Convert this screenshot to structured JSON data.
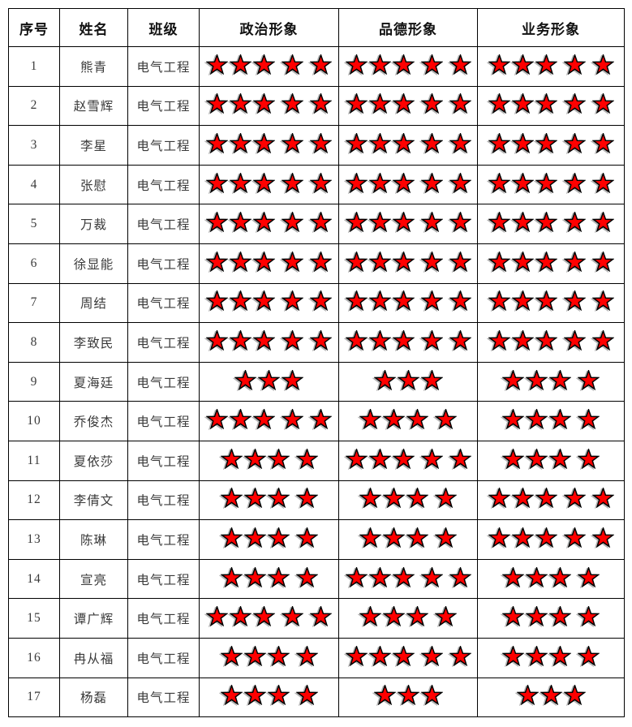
{
  "table": {
    "headers": [
      {
        "key": "index",
        "label": "序号"
      },
      {
        "key": "name",
        "label": "姓名"
      },
      {
        "key": "class",
        "label": "班级"
      },
      {
        "key": "political",
        "label": "政治形象"
      },
      {
        "key": "moral",
        "label": "品德形象"
      },
      {
        "key": "business",
        "label": "业务形象"
      }
    ],
    "rows": [
      {
        "index": "1",
        "name": "熊青",
        "class": "电气工程",
        "political": 5,
        "moral": 5,
        "business": 5
      },
      {
        "index": "2",
        "name": "赵雪辉",
        "class": "电气工程",
        "political": 5,
        "moral": 5,
        "business": 5
      },
      {
        "index": "3",
        "name": "李星",
        "class": "电气工程",
        "political": 5,
        "moral": 5,
        "business": 5
      },
      {
        "index": "4",
        "name": "张慰",
        "class": "电气工程",
        "political": 5,
        "moral": 5,
        "business": 5
      },
      {
        "index": "5",
        "name": "万裁",
        "class": "电气工程",
        "political": 5,
        "moral": 5,
        "business": 5
      },
      {
        "index": "6",
        "name": "徐显能",
        "class": "电气工程",
        "political": 5,
        "moral": 5,
        "business": 5
      },
      {
        "index": "7",
        "name": "周结",
        "class": "电气工程",
        "political": 5,
        "moral": 5,
        "business": 5
      },
      {
        "index": "8",
        "name": "李致民",
        "class": "电气工程",
        "political": 5,
        "moral": 5,
        "business": 5
      },
      {
        "index": "9",
        "name": "夏海廷",
        "class": "电气工程",
        "political": 3,
        "moral": 3,
        "business": 4
      },
      {
        "index": "10",
        "name": "乔俊杰",
        "class": "电气工程",
        "political": 5,
        "moral": 4,
        "business": 4
      },
      {
        "index": "11",
        "name": "夏依莎",
        "class": "电气工程",
        "political": 4,
        "moral": 5,
        "business": 4
      },
      {
        "index": "12",
        "name": "李倩文",
        "class": "电气工程",
        "political": 4,
        "moral": 4,
        "business": 5
      },
      {
        "index": "13",
        "name": "陈琳",
        "class": "电气工程",
        "political": 4,
        "moral": 4,
        "business": 5
      },
      {
        "index": "14",
        "name": "宣亮",
        "class": "电气工程",
        "political": 4,
        "moral": 5,
        "business": 4
      },
      {
        "index": "15",
        "name": "谭广辉",
        "class": "电气工程",
        "political": 5,
        "moral": 4,
        "business": 4
      },
      {
        "index": "16",
        "name": "冉从福",
        "class": "电气工程",
        "political": 4,
        "moral": 5,
        "business": 4
      },
      {
        "index": "17",
        "name": "杨磊",
        "class": "电气工程",
        "political": 4,
        "moral": 3,
        "business": 3
      }
    ]
  },
  "star": {
    "fill": "#ff0000",
    "stroke": "#000000"
  }
}
